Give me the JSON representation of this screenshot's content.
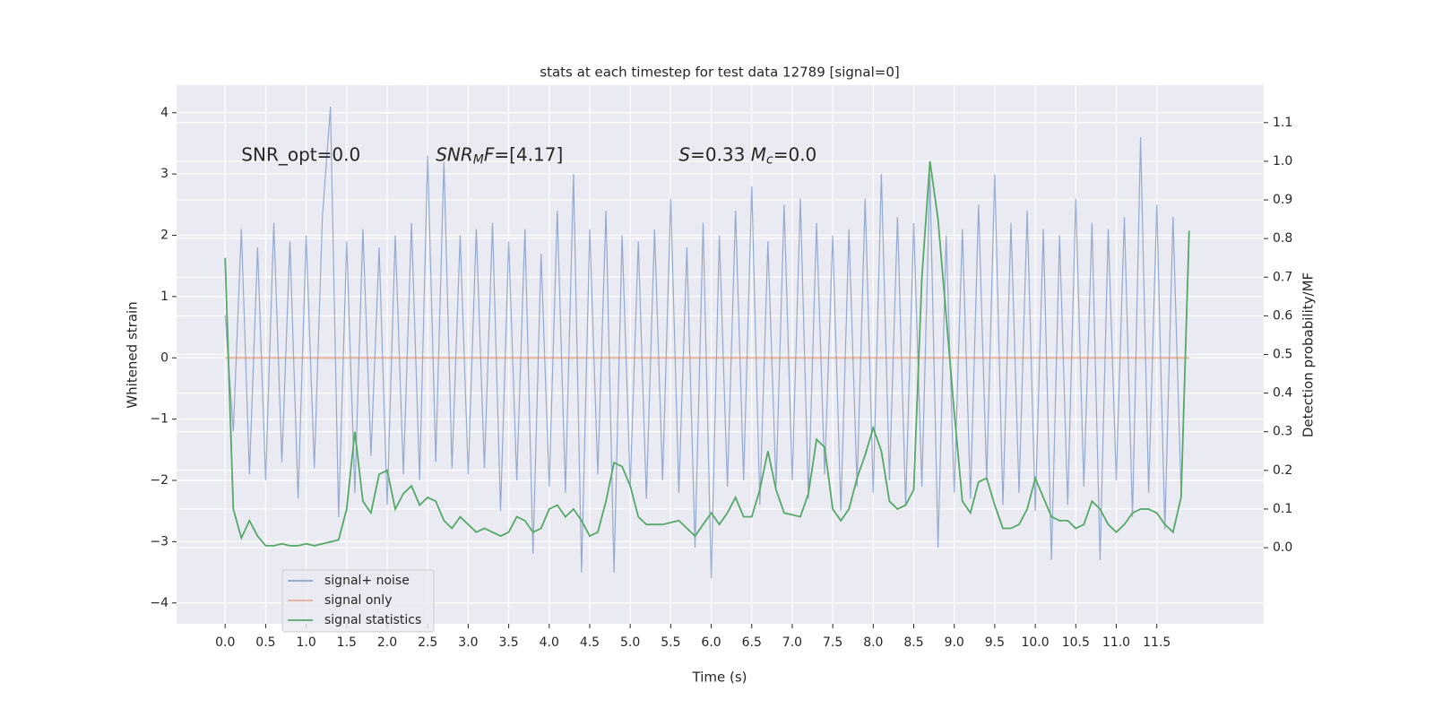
{
  "chart_data": {
    "type": "line",
    "title": "stats at each timestep for test data 12789 [signal=0]",
    "xlabel": "Time (s)",
    "ylabel": "Whitened strain",
    "y2label": "Detection probability/MF",
    "annotations": [
      {
        "x": 0.2,
        "y": 3.3,
        "parts": [
          {
            "text": "SNR_opt=0.0",
            "style": "normal"
          }
        ]
      },
      {
        "x": 2.6,
        "y": 3.3,
        "parts": [
          {
            "text": "SNR",
            "style": "italic"
          },
          {
            "text": "M",
            "style": "sub"
          },
          {
            "text": "F",
            "style": "italic"
          },
          {
            "text": "=[4.17]",
            "style": "normal"
          }
        ]
      },
      {
        "x": 5.6,
        "y": 3.3,
        "parts": [
          {
            "text": "S",
            "style": "italic"
          },
          {
            "text": "=0.33   ",
            "style": "normal"
          },
          {
            "text": "M",
            "style": "italic"
          },
          {
            "text": "c",
            "style": "sub"
          },
          {
            "text": "=0.0",
            "style": "normal"
          }
        ]
      }
    ],
    "x": [
      0.0,
      0.1,
      0.2,
      0.3,
      0.4,
      0.5,
      0.6,
      0.7,
      0.8,
      0.9,
      1.0,
      1.1,
      1.2,
      1.3,
      1.4,
      1.5,
      1.6,
      1.7,
      1.8,
      1.9,
      2.0,
      2.1,
      2.2,
      2.3,
      2.4,
      2.5,
      2.6,
      2.7,
      2.8,
      2.9,
      3.0,
      3.1,
      3.2,
      3.3,
      3.4,
      3.5,
      3.6,
      3.7,
      3.8,
      3.9,
      4.0,
      4.1,
      4.2,
      4.3,
      4.4,
      4.5,
      4.6,
      4.7,
      4.8,
      4.9,
      5.0,
      5.1,
      5.2,
      5.3,
      5.4,
      5.5,
      5.6,
      5.7,
      5.8,
      5.9,
      6.0,
      6.1,
      6.2,
      6.3,
      6.4,
      6.5,
      6.6,
      6.7,
      6.8,
      6.9,
      7.0,
      7.1,
      7.2,
      7.3,
      7.4,
      7.5,
      7.6,
      7.7,
      7.8,
      7.9,
      8.0,
      8.1,
      8.2,
      8.3,
      8.4,
      8.5,
      8.6,
      8.7,
      8.8,
      8.9,
      9.0,
      9.1,
      9.2,
      9.3,
      9.4,
      9.5,
      9.6,
      9.7,
      9.8,
      9.9,
      10.0,
      10.1,
      10.2,
      10.3,
      10.4,
      10.5,
      10.6,
      10.7,
      10.8,
      10.9,
      11.0,
      11.1,
      11.2,
      11.3,
      11.4,
      11.5,
      11.6,
      11.7,
      11.8,
      11.9
    ],
    "series": [
      {
        "name": "signal+ noise",
        "color": "#4c72b0",
        "axis": "y",
        "values": [
          0.7,
          -1.2,
          2.1,
          -1.9,
          1.8,
          -2.0,
          2.2,
          -1.7,
          1.9,
          -2.3,
          2.0,
          -1.8,
          2.3,
          4.1,
          -2.6,
          1.9,
          -2.2,
          2.1,
          -1.6,
          1.8,
          -2.4,
          2.0,
          -1.9,
          2.2,
          -2.0,
          3.3,
          -1.7,
          3.2,
          -1.8,
          2.0,
          -1.9,
          2.1,
          -1.8,
          2.2,
          -2.5,
          1.9,
          -2.0,
          2.1,
          -3.2,
          1.7,
          -2.1,
          2.4,
          -2.2,
          3.0,
          -3.5,
          2.1,
          -1.9,
          2.4,
          -3.5,
          2.0,
          -2.1,
          1.9,
          -2.3,
          2.1,
          -2.0,
          2.6,
          -2.2,
          1.8,
          -3.1,
          2.2,
          -3.6,
          2.0,
          -2.1,
          2.4,
          -2.0,
          2.8,
          -2.4,
          1.9,
          -2.1,
          2.5,
          -2.0,
          2.6,
          -2.3,
          2.2,
          -1.9,
          2.0,
          -2.5,
          2.1,
          -2.1,
          2.6,
          -2.2,
          3.0,
          -2.0,
          2.3,
          -2.4,
          2.2,
          -2.1,
          3.0,
          -3.1,
          2.0,
          -2.2,
          2.1,
          -2.3,
          2.5,
          -2.0,
          3.0,
          -2.4,
          2.2,
          -2.2,
          2.4,
          -2.5,
          2.1,
          -3.3,
          2.0,
          -2.4,
          2.6,
          -2.1,
          2.2,
          -3.3,
          2.1,
          -2.0,
          2.3,
          -2.6,
          3.6,
          -2.2,
          2.5,
          -2.8,
          2.3,
          -2.2,
          2.0
        ]
      },
      {
        "name": "signal only",
        "color": "#dd8452",
        "axis": "y",
        "values": [
          0,
          0,
          0,
          0,
          0,
          0,
          0,
          0,
          0,
          0,
          0,
          0,
          0,
          0,
          0,
          0,
          0,
          0,
          0,
          0,
          0,
          0,
          0,
          0,
          0,
          0,
          0,
          0,
          0,
          0,
          0,
          0,
          0,
          0,
          0,
          0,
          0,
          0,
          0,
          0,
          0,
          0,
          0,
          0,
          0,
          0,
          0,
          0,
          0,
          0,
          0,
          0,
          0,
          0,
          0,
          0,
          0,
          0,
          0,
          0,
          0,
          0,
          0,
          0,
          0,
          0,
          0,
          0,
          0,
          0,
          0,
          0,
          0,
          0,
          0,
          0,
          0,
          0,
          0,
          0,
          0,
          0,
          0,
          0,
          0,
          0,
          0,
          0,
          0,
          0,
          0,
          0,
          0,
          0,
          0,
          0,
          0,
          0,
          0,
          0,
          0,
          0,
          0,
          0,
          0,
          0,
          0,
          0,
          0,
          0,
          0,
          0,
          0,
          0,
          0,
          0,
          0,
          0,
          0,
          0
        ]
      },
      {
        "name": "signal statistics",
        "color": "#55a868",
        "axis": "y2",
        "values": [
          0.75,
          0.1,
          0.025,
          0.07,
          0.03,
          0.005,
          0.005,
          0.01,
          0.005,
          0.005,
          0.01,
          0.005,
          0.01,
          0.015,
          0.02,
          0.1,
          0.3,
          0.12,
          0.09,
          0.19,
          0.2,
          0.1,
          0.14,
          0.16,
          0.11,
          0.13,
          0.12,
          0.07,
          0.05,
          0.08,
          0.06,
          0.04,
          0.05,
          0.04,
          0.03,
          0.04,
          0.08,
          0.07,
          0.04,
          0.05,
          0.1,
          0.11,
          0.08,
          0.1,
          0.07,
          0.03,
          0.04,
          0.12,
          0.22,
          0.21,
          0.16,
          0.08,
          0.06,
          0.06,
          0.06,
          0.065,
          0.07,
          0.05,
          0.03,
          0.06,
          0.09,
          0.06,
          0.09,
          0.13,
          0.08,
          0.08,
          0.15,
          0.25,
          0.15,
          0.09,
          0.085,
          0.08,
          0.14,
          0.28,
          0.26,
          0.1,
          0.07,
          0.1,
          0.18,
          0.24,
          0.31,
          0.25,
          0.12,
          0.1,
          0.11,
          0.15,
          0.7,
          1.0,
          0.85,
          0.6,
          0.35,
          0.12,
          0.09,
          0.17,
          0.18,
          0.11,
          0.05,
          0.05,
          0.06,
          0.1,
          0.18,
          0.13,
          0.08,
          0.07,
          0.07,
          0.05,
          0.06,
          0.12,
          0.1,
          0.06,
          0.04,
          0.06,
          0.09,
          0.1,
          0.1,
          0.09,
          0.06,
          0.04,
          0.13,
          0.82
        ]
      }
    ],
    "xlim": [
      -0.6,
      12.82
    ],
    "ylim": [
      -4.34,
      4.45
    ],
    "y2lim": [
      -0.197,
      1.197
    ],
    "xticks": [
      {
        "value": 0,
        "label": "0.0"
      },
      0.5,
      {
        "value": 1,
        "label": "1.0"
      },
      1.5,
      {
        "value": 2,
        "label": "2.0"
      },
      2.5,
      {
        "value": 3,
        "label": "3.0"
      },
      3.5,
      {
        "value": 4,
        "label": "4.0"
      },
      4.5,
      {
        "value": 5,
        "label": "5.0"
      },
      5.5,
      {
        "value": 6,
        "label": "6.0"
      },
      6.5,
      {
        "value": 7,
        "label": "7.0"
      },
      7.5,
      {
        "value": 8,
        "label": "8.0"
      },
      8.5,
      {
        "value": 9,
        "label": "9.0"
      },
      9.5,
      {
        "value": 10,
        "label": "10.0"
      },
      10.5,
      {
        "value": 11,
        "label": "11.0"
      },
      11.5
    ],
    "yticks": [
      {
        "value": -4,
        "label": "−4"
      },
      {
        "value": -3,
        "label": "−3"
      },
      {
        "value": -2,
        "label": "−2"
      },
      {
        "value": -1,
        "label": "−1"
      },
      0,
      1,
      2,
      3,
      4
    ],
    "y2ticks": [
      {
        "value": 0,
        "label": "0.0"
      },
      0.1,
      0.2,
      0.3,
      0.4,
      0.5,
      0.6,
      0.7,
      0.8,
      0.9,
      {
        "value": 1,
        "label": "1.0"
      },
      1.1
    ],
    "grid": true,
    "legend": "lower left"
  }
}
